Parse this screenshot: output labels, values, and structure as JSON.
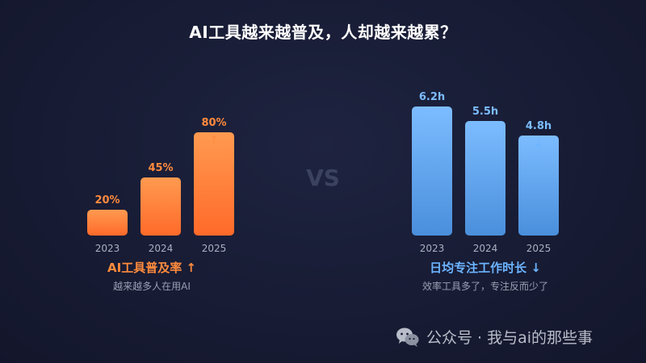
{
  "title": "AI工具越来越普及，人却越来越累？",
  "vs_label": "VS",
  "left_panel": {
    "label": "AI工具普及率 ↑",
    "subtitle": "越来越多人在用AI",
    "accent": "#ff8a3d"
  },
  "right_panel": {
    "label": "日均专注工作时长 ↓",
    "subtitle": "效率工具多了，专注反而少了",
    "accent": "#6cb4ff"
  },
  "watermark": {
    "icon": "wechat-icon",
    "text": "公众号 · 我与ai的那些事"
  },
  "chart_data": [
    {
      "type": "bar",
      "categories": [
        "2023",
        "2024",
        "2025"
      ],
      "values": [
        20,
        45,
        80
      ],
      "labels": [
        "20%",
        "45%",
        "80%"
      ],
      "ylim": [
        0,
        100
      ],
      "trend_marker": "↑",
      "colors": [
        "#ff9a50",
        "#ff6a2a"
      ]
    },
    {
      "type": "bar",
      "categories": [
        "2023",
        "2024",
        "2025"
      ],
      "values": [
        6.2,
        5.5,
        4.8
      ],
      "labels": [
        "6.2h",
        "5.5h",
        "4.8h"
      ],
      "ylim": [
        0,
        6.2
      ],
      "trend_marker": "↓",
      "colors": [
        "#7cbcff",
        "#4a8fdc"
      ]
    }
  ]
}
